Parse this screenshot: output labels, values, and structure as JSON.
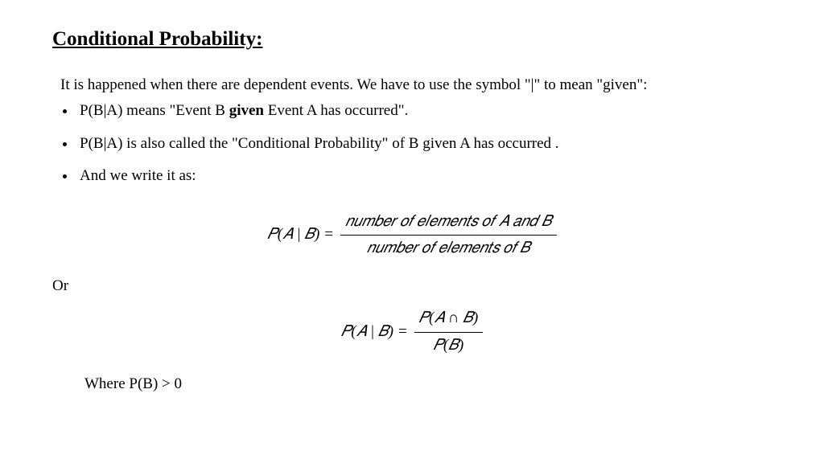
{
  "title": "Conditional Probability:",
  "intro": "It is happened when there are dependent events. We have to use the symbol \"|\" to mean \"given\":",
  "bullets": {
    "b1_pre": "P(B|A) means \"Event B ",
    "b1_bold": "given",
    "b1_post": " Event A has occurred\".",
    "b2": "P(B|A) is also called the \"Conditional Probability\" of B given A has occurred .",
    "b3": "And we write it as:"
  },
  "formula1": {
    "lhs": "𝑃(𝐴 | 𝐵)  =  ",
    "num": "𝑛𝑢𝑚𝑏𝑒𝑟 𝑜𝑓 𝑒𝑙𝑒𝑚𝑒𝑛𝑡𝑠 𝑜𝑓 𝐴 𝑎𝑛𝑑 𝐵",
    "den": "𝑛𝑢𝑚𝑏𝑒𝑟 𝑜𝑓 𝑒𝑙𝑒𝑚𝑒𝑛𝑡𝑠 𝑜𝑓 𝐵"
  },
  "or_label": "Or",
  "formula2": {
    "lhs": "𝑃(𝐴 | 𝐵)  =  ",
    "num": "𝑃(𝐴 ∩ 𝐵)",
    "den": "𝑃(𝐵)"
  },
  "where": "Where P(B) > 0"
}
